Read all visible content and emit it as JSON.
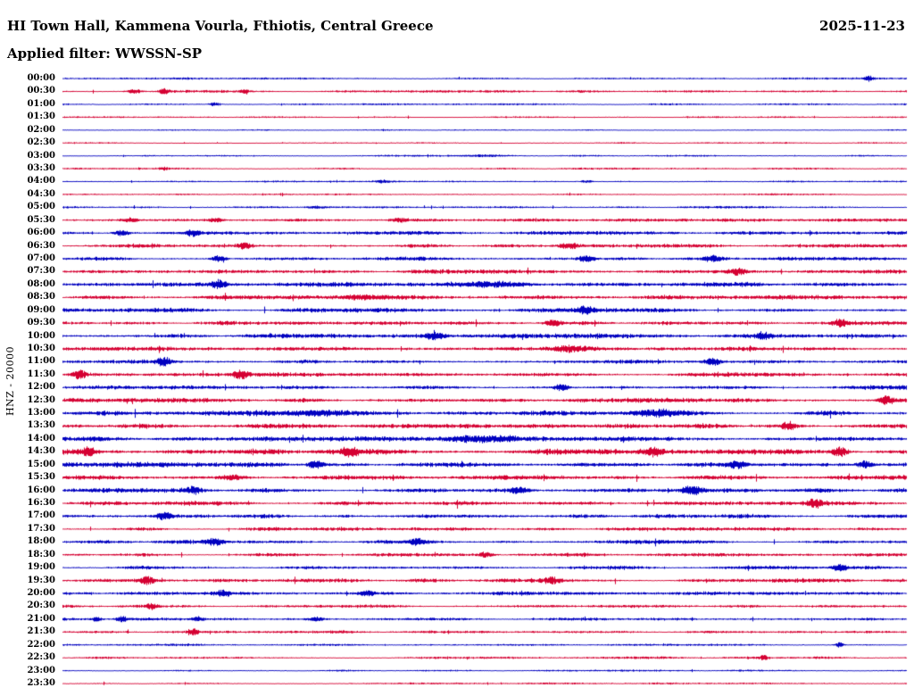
{
  "header": {
    "station_title": "HI Town Hall, Kammena Vourla, Fthiotis, Central Greece",
    "date": "2025-11-23",
    "filter_label": "Applied filter: WWSSN-SP"
  },
  "axis": {
    "channel_label": "HNZ - 20000"
  },
  "colors": {
    "trace_blue": "#0000c0",
    "trace_red": "#d50032",
    "text": "#000000",
    "background": "#ffffff"
  },
  "chart_data": {
    "type": "line",
    "subtype": "helicorder-seismogram",
    "title": "HI Town Hall, Kammena Vourla, Fthiotis, Central Greece",
    "date": "2025-11-23",
    "filter": "WWSSN-SP",
    "channel": "HNZ",
    "scale": "20000",
    "row_duration_minutes": 30,
    "legend": "alternating blue/red traces, one 30-minute row each, 00:00 to 23:30",
    "rows": [
      {
        "label": "00:00",
        "color": "blue",
        "amp": 0.7,
        "bursts": [
          [
            0.955,
            3,
            5
          ]
        ]
      },
      {
        "label": "00:30",
        "color": "red",
        "amp": 0.8,
        "bursts": [
          [
            0.085,
            2.5,
            8
          ],
          [
            0.12,
            3,
            6
          ],
          [
            0.215,
            2,
            5
          ]
        ]
      },
      {
        "label": "01:00",
        "color": "blue",
        "amp": 0.6,
        "bursts": [
          [
            0.18,
            2.5,
            5
          ]
        ]
      },
      {
        "label": "01:30",
        "color": "red",
        "amp": 0.55,
        "bursts": []
      },
      {
        "label": "02:00",
        "color": "blue",
        "amp": 0.5,
        "bursts": []
      },
      {
        "label": "02:30",
        "color": "red",
        "amp": 0.5,
        "bursts": []
      },
      {
        "label": "03:00",
        "color": "blue",
        "amp": 0.6,
        "bursts": [
          [
            0.5,
            1.2,
            30
          ]
        ]
      },
      {
        "label": "03:30",
        "color": "red",
        "amp": 0.6,
        "bursts": [
          [
            0.12,
            2,
            6
          ]
        ]
      },
      {
        "label": "04:00",
        "color": "blue",
        "amp": 0.6,
        "bursts": [
          [
            0.38,
            1.6,
            8
          ],
          [
            0.62,
            1.6,
            8
          ]
        ]
      },
      {
        "label": "04:30",
        "color": "red",
        "amp": 0.55,
        "bursts": []
      },
      {
        "label": "05:00",
        "color": "blue",
        "amp": 0.8,
        "bursts": [
          [
            0.3,
            1.3,
            12
          ]
        ]
      },
      {
        "label": "05:30",
        "color": "red",
        "amp": 1.0,
        "bursts": [
          [
            0.08,
            1.8,
            8
          ],
          [
            0.18,
            1.8,
            8
          ],
          [
            0.4,
            1.6,
            10
          ]
        ]
      },
      {
        "label": "06:00",
        "color": "blue",
        "amp": 1.2,
        "bursts": [
          [
            0.07,
            2.2,
            8
          ],
          [
            0.155,
            2.2,
            8
          ]
        ]
      },
      {
        "label": "06:30",
        "color": "red",
        "amp": 1.2,
        "bursts": [
          [
            0.215,
            2.2,
            8
          ],
          [
            0.6,
            1.8,
            10
          ]
        ]
      },
      {
        "label": "07:00",
        "color": "blue",
        "amp": 1.3,
        "bursts": [
          [
            0.185,
            2.2,
            8
          ],
          [
            0.62,
            1.8,
            10
          ],
          [
            0.77,
            1.8,
            10
          ]
        ]
      },
      {
        "label": "07:30",
        "color": "red",
        "amp": 1.3,
        "bursts": [
          [
            0.8,
            2.2,
            10
          ]
        ]
      },
      {
        "label": "08:00",
        "color": "blue",
        "amp": 1.5,
        "bursts": [
          [
            0.185,
            2.6,
            8
          ],
          [
            0.5,
            1.3,
            40
          ]
        ]
      },
      {
        "label": "08:30",
        "color": "red",
        "amp": 1.4,
        "bursts": [
          [
            0.35,
            1.3,
            30
          ]
        ]
      },
      {
        "label": "09:00",
        "color": "blue",
        "amp": 1.4,
        "bursts": [
          [
            0.62,
            1.8,
            10
          ]
        ]
      },
      {
        "label": "09:30",
        "color": "red",
        "amp": 1.4,
        "bursts": [
          [
            0.58,
            1.8,
            10
          ],
          [
            0.92,
            1.9,
            8
          ]
        ]
      },
      {
        "label": "10:00",
        "color": "blue",
        "amp": 1.4,
        "bursts": [
          [
            0.44,
            1.8,
            10
          ],
          [
            0.83,
            1.9,
            8
          ]
        ]
      },
      {
        "label": "10:30",
        "color": "red",
        "amp": 1.4,
        "bursts": [
          [
            0.6,
            1.3,
            20
          ]
        ]
      },
      {
        "label": "11:00",
        "color": "blue",
        "amp": 1.4,
        "bursts": [
          [
            0.12,
            2.4,
            8
          ],
          [
            0.77,
            1.8,
            10
          ]
        ]
      },
      {
        "label": "11:30",
        "color": "red",
        "amp": 1.6,
        "bursts": [
          [
            0.02,
            2.2,
            8
          ],
          [
            0.21,
            2.2,
            8
          ]
        ]
      },
      {
        "label": "12:00",
        "color": "blue",
        "amp": 1.4,
        "bursts": [
          [
            0.59,
            2,
            8
          ]
        ]
      },
      {
        "label": "12:30",
        "color": "red",
        "amp": 1.6,
        "bursts": [
          [
            0.975,
            2.2,
            8
          ]
        ]
      },
      {
        "label": "13:00",
        "color": "blue",
        "amp": 1.6,
        "bursts": [
          [
            0.3,
            1.3,
            30
          ],
          [
            0.7,
            1.3,
            30
          ]
        ]
      },
      {
        "label": "13:30",
        "color": "red",
        "amp": 1.5,
        "bursts": [
          [
            0.86,
            2,
            8
          ]
        ]
      },
      {
        "label": "14:00",
        "color": "blue",
        "amp": 1.5,
        "bursts": [
          [
            0.5,
            1.2,
            40
          ]
        ]
      },
      {
        "label": "14:30",
        "color": "red",
        "amp": 1.7,
        "bursts": [
          [
            0.03,
            2,
            8
          ],
          [
            0.34,
            1.8,
            10
          ],
          [
            0.7,
            1.8,
            10
          ],
          [
            0.92,
            2.6,
            8
          ]
        ]
      },
      {
        "label": "15:00",
        "color": "blue",
        "amp": 1.6,
        "bursts": [
          [
            0.3,
            2,
            10
          ],
          [
            0.8,
            1.8,
            10
          ],
          [
            0.95,
            2.2,
            8
          ]
        ]
      },
      {
        "label": "15:30",
        "color": "red",
        "amp": 1.5,
        "bursts": [
          [
            0.2,
            1.4,
            15
          ]
        ]
      },
      {
        "label": "16:00",
        "color": "blue",
        "amp": 1.4,
        "bursts": [
          [
            0.155,
            2,
            8
          ],
          [
            0.54,
            1.8,
            10
          ],
          [
            0.745,
            2.6,
            10
          ]
        ]
      },
      {
        "label": "16:30",
        "color": "red",
        "amp": 1.5,
        "bursts": [
          [
            0.89,
            2.2,
            8
          ]
        ]
      },
      {
        "label": "17:00",
        "color": "blue",
        "amp": 1.4,
        "bursts": [
          [
            0.12,
            2.2,
            8
          ]
        ]
      },
      {
        "label": "17:30",
        "color": "red",
        "amp": 1.2,
        "bursts": []
      },
      {
        "label": "18:00",
        "color": "blue",
        "amp": 1.3,
        "bursts": [
          [
            0.18,
            2,
            10
          ],
          [
            0.42,
            2,
            10
          ]
        ]
      },
      {
        "label": "18:30",
        "color": "red",
        "amp": 1.2,
        "bursts": [
          [
            0.5,
            1.8,
            8
          ]
        ]
      },
      {
        "label": "19:00",
        "color": "blue",
        "amp": 1.2,
        "bursts": [
          [
            0.92,
            2,
            8
          ]
        ]
      },
      {
        "label": "19:30",
        "color": "red",
        "amp": 1.3,
        "bursts": [
          [
            0.1,
            2.6,
            8
          ],
          [
            0.58,
            1.8,
            8
          ]
        ]
      },
      {
        "label": "20:00",
        "color": "blue",
        "amp": 1.2,
        "bursts": [
          [
            0.19,
            1.8,
            8
          ],
          [
            0.36,
            1.8,
            8
          ]
        ]
      },
      {
        "label": "20:30",
        "color": "red",
        "amp": 1.0,
        "bursts": [
          [
            0.105,
            2.2,
            6
          ]
        ]
      },
      {
        "label": "21:00",
        "color": "blue",
        "amp": 1.0,
        "bursts": [
          [
            0.04,
            1.8,
            6
          ],
          [
            0.07,
            2.2,
            6
          ],
          [
            0.16,
            1.8,
            6
          ],
          [
            0.3,
            1.6,
            8
          ]
        ]
      },
      {
        "label": "21:30",
        "color": "red",
        "amp": 0.9,
        "bursts": [
          [
            0.155,
            3.2,
            5
          ]
        ]
      },
      {
        "label": "22:00",
        "color": "blue",
        "amp": 0.8,
        "bursts": [
          [
            0.92,
            3.2,
            4
          ]
        ]
      },
      {
        "label": "22:30",
        "color": "red",
        "amp": 0.8,
        "bursts": [
          [
            0.83,
            3.2,
            4
          ]
        ]
      },
      {
        "label": "23:00",
        "color": "blue",
        "amp": 0.6,
        "bursts": []
      },
      {
        "label": "23:30",
        "color": "red",
        "amp": 0.7,
        "bursts": []
      }
    ]
  }
}
